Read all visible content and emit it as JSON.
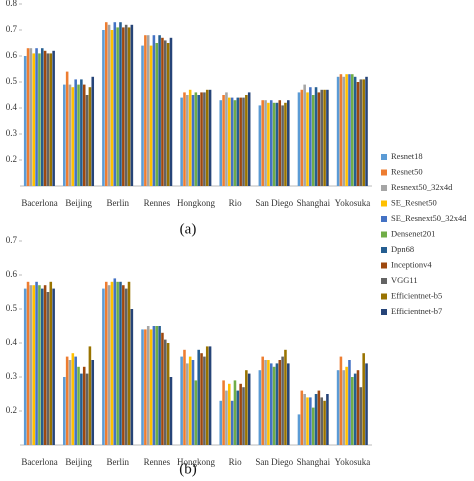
{
  "chart_data": [
    {
      "type": "bar",
      "caption": "(a)",
      "categories": [
        "Bacerlona",
        "Beijing",
        "Berlin",
        "Rennes",
        "Hongkong",
        "Rio",
        "San Diego",
        "Shanghai",
        "Yokosuka"
      ],
      "ylim": [
        0.1,
        0.8
      ],
      "yticks": [
        0.2,
        0.3,
        0.4,
        0.5,
        0.6,
        0.7,
        0.8
      ],
      "series": [
        {
          "name": "Resnet18",
          "color": "#5b9bd5",
          "values": [
            0.6,
            0.49,
            0.7,
            0.64,
            0.44,
            0.43,
            0.41,
            0.46,
            0.52
          ]
        },
        {
          "name": "Resnet50",
          "color": "#ed7d31",
          "values": [
            0.63,
            0.54,
            0.73,
            0.68,
            0.46,
            0.45,
            0.43,
            0.47,
            0.53
          ]
        },
        {
          "name": "Resnext50_32x4d",
          "color": "#a5a5a5",
          "values": [
            0.63,
            0.49,
            0.72,
            0.68,
            0.45,
            0.46,
            0.43,
            0.49,
            0.52
          ]
        },
        {
          "name": "SE_Resnet50",
          "color": "#ffc000",
          "values": [
            0.61,
            0.48,
            0.7,
            0.64,
            0.47,
            0.44,
            0.42,
            0.46,
            0.53
          ]
        },
        {
          "name": "SE_Resnext50_32x4d",
          "color": "#4472c4",
          "values": [
            0.63,
            0.51,
            0.73,
            0.68,
            0.45,
            0.44,
            0.43,
            0.48,
            0.53
          ]
        },
        {
          "name": "Densenet201",
          "color": "#70ad47",
          "values": [
            0.61,
            0.49,
            0.71,
            0.65,
            0.46,
            0.43,
            0.42,
            0.45,
            0.53
          ]
        },
        {
          "name": "Dpn68",
          "color": "#255e91",
          "values": [
            0.63,
            0.51,
            0.73,
            0.68,
            0.45,
            0.44,
            0.42,
            0.48,
            0.52
          ]
        },
        {
          "name": "Inceptionv4",
          "color": "#9e480e",
          "values": [
            0.62,
            0.49,
            0.71,
            0.67,
            0.46,
            0.44,
            0.43,
            0.46,
            0.5
          ]
        },
        {
          "name": "VGG11",
          "color": "#636363",
          "values": [
            0.61,
            0.45,
            0.72,
            0.66,
            0.46,
            0.44,
            0.41,
            0.47,
            0.51
          ]
        },
        {
          "name": "Efficientnet-b5",
          "color": "#997300",
          "values": [
            0.61,
            0.48,
            0.71,
            0.65,
            0.47,
            0.45,
            0.42,
            0.47,
            0.51
          ]
        },
        {
          "name": "Efficientnet-b7",
          "color": "#264478",
          "values": [
            0.62,
            0.52,
            0.72,
            0.67,
            0.47,
            0.46,
            0.43,
            0.47,
            0.52
          ]
        }
      ]
    },
    {
      "type": "bar",
      "caption": "(b)",
      "categories": [
        "Bacerlona",
        "Beijing",
        "Berlin",
        "Rennes",
        "Hongkong",
        "Rio",
        "San Diego",
        "Shanghai",
        "Yokosuka"
      ],
      "ylim": [
        0.1,
        0.7
      ],
      "yticks": [
        0.2,
        0.3,
        0.4,
        0.5,
        0.6,
        0.7
      ],
      "series": [
        {
          "values": [
            0.56,
            0.3,
            0.56,
            0.44,
            0.36,
            0.23,
            0.32,
            0.19,
            0.32
          ]
        },
        {
          "values": [
            0.58,
            0.36,
            0.58,
            0.44,
            0.38,
            0.29,
            0.36,
            0.26,
            0.36
          ]
        },
        {
          "values": [
            0.57,
            0.35,
            0.57,
            0.45,
            0.34,
            0.26,
            0.35,
            0.25,
            0.32
          ]
        },
        {
          "values": [
            0.57,
            0.37,
            0.58,
            0.44,
            0.36,
            0.28,
            0.35,
            0.24,
            0.33
          ]
        },
        {
          "values": [
            0.58,
            0.36,
            0.59,
            0.45,
            0.35,
            0.23,
            0.34,
            0.24,
            0.35
          ]
        },
        {
          "values": [
            0.57,
            0.33,
            0.58,
            0.45,
            0.29,
            0.29,
            0.33,
            0.21,
            0.3
          ]
        },
        {
          "values": [
            0.56,
            0.31,
            0.58,
            0.45,
            0.38,
            0.26,
            0.34,
            0.25,
            0.31
          ]
        },
        {
          "values": [
            0.57,
            0.33,
            0.57,
            0.43,
            0.37,
            0.28,
            0.35,
            0.26,
            0.32
          ]
        },
        {
          "values": [
            0.55,
            0.31,
            0.56,
            0.41,
            0.36,
            0.27,
            0.36,
            0.24,
            0.27
          ]
        },
        {
          "values": [
            0.58,
            0.39,
            0.58,
            0.4,
            0.39,
            0.32,
            0.38,
            0.23,
            0.37
          ]
        },
        {
          "values": [
            0.56,
            0.35,
            0.5,
            0.3,
            0.39,
            0.31,
            0.34,
            0.25,
            0.34
          ]
        }
      ]
    }
  ]
}
